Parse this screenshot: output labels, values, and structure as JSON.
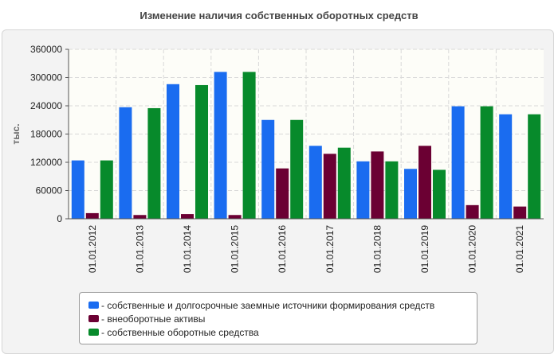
{
  "chart_data": {
    "type": "bar",
    "title": "Изменение наличия собственных оборотных средств",
    "ylabel": "тыс.",
    "xlabel": "",
    "ylim": [
      0,
      360000
    ],
    "yticks": [
      "0",
      "60000",
      "120000",
      "180000",
      "240000",
      "300000",
      "360000"
    ],
    "grid": true,
    "legend_position": "bottom",
    "categories": [
      "01.01.2012",
      "01.01.2013",
      "01.01.2014",
      "01.01.2015",
      "01.01.2016",
      "01.01.2017",
      "01.01.2018",
      "01.01.2019",
      "01.01.2020",
      "01.01.2021"
    ],
    "series": [
      {
        "name": "- собственные и долгосрочные заемные источники формирования средств",
        "color": "#1a6cf0",
        "values": [
          124000,
          237000,
          286000,
          312000,
          210000,
          155000,
          122000,
          106000,
          239000,
          222000
        ]
      },
      {
        "name": "- внеоборотные активы",
        "color": "#6b0033",
        "values": [
          12000,
          8000,
          10000,
          8000,
          107000,
          138000,
          143000,
          155000,
          29000,
          26000
        ]
      },
      {
        "name": "- собственные оборотные средства",
        "color": "#078a2b",
        "values": [
          124000,
          235000,
          284000,
          312000,
          210000,
          151000,
          122000,
          104000,
          239000,
          222000
        ]
      }
    ]
  }
}
